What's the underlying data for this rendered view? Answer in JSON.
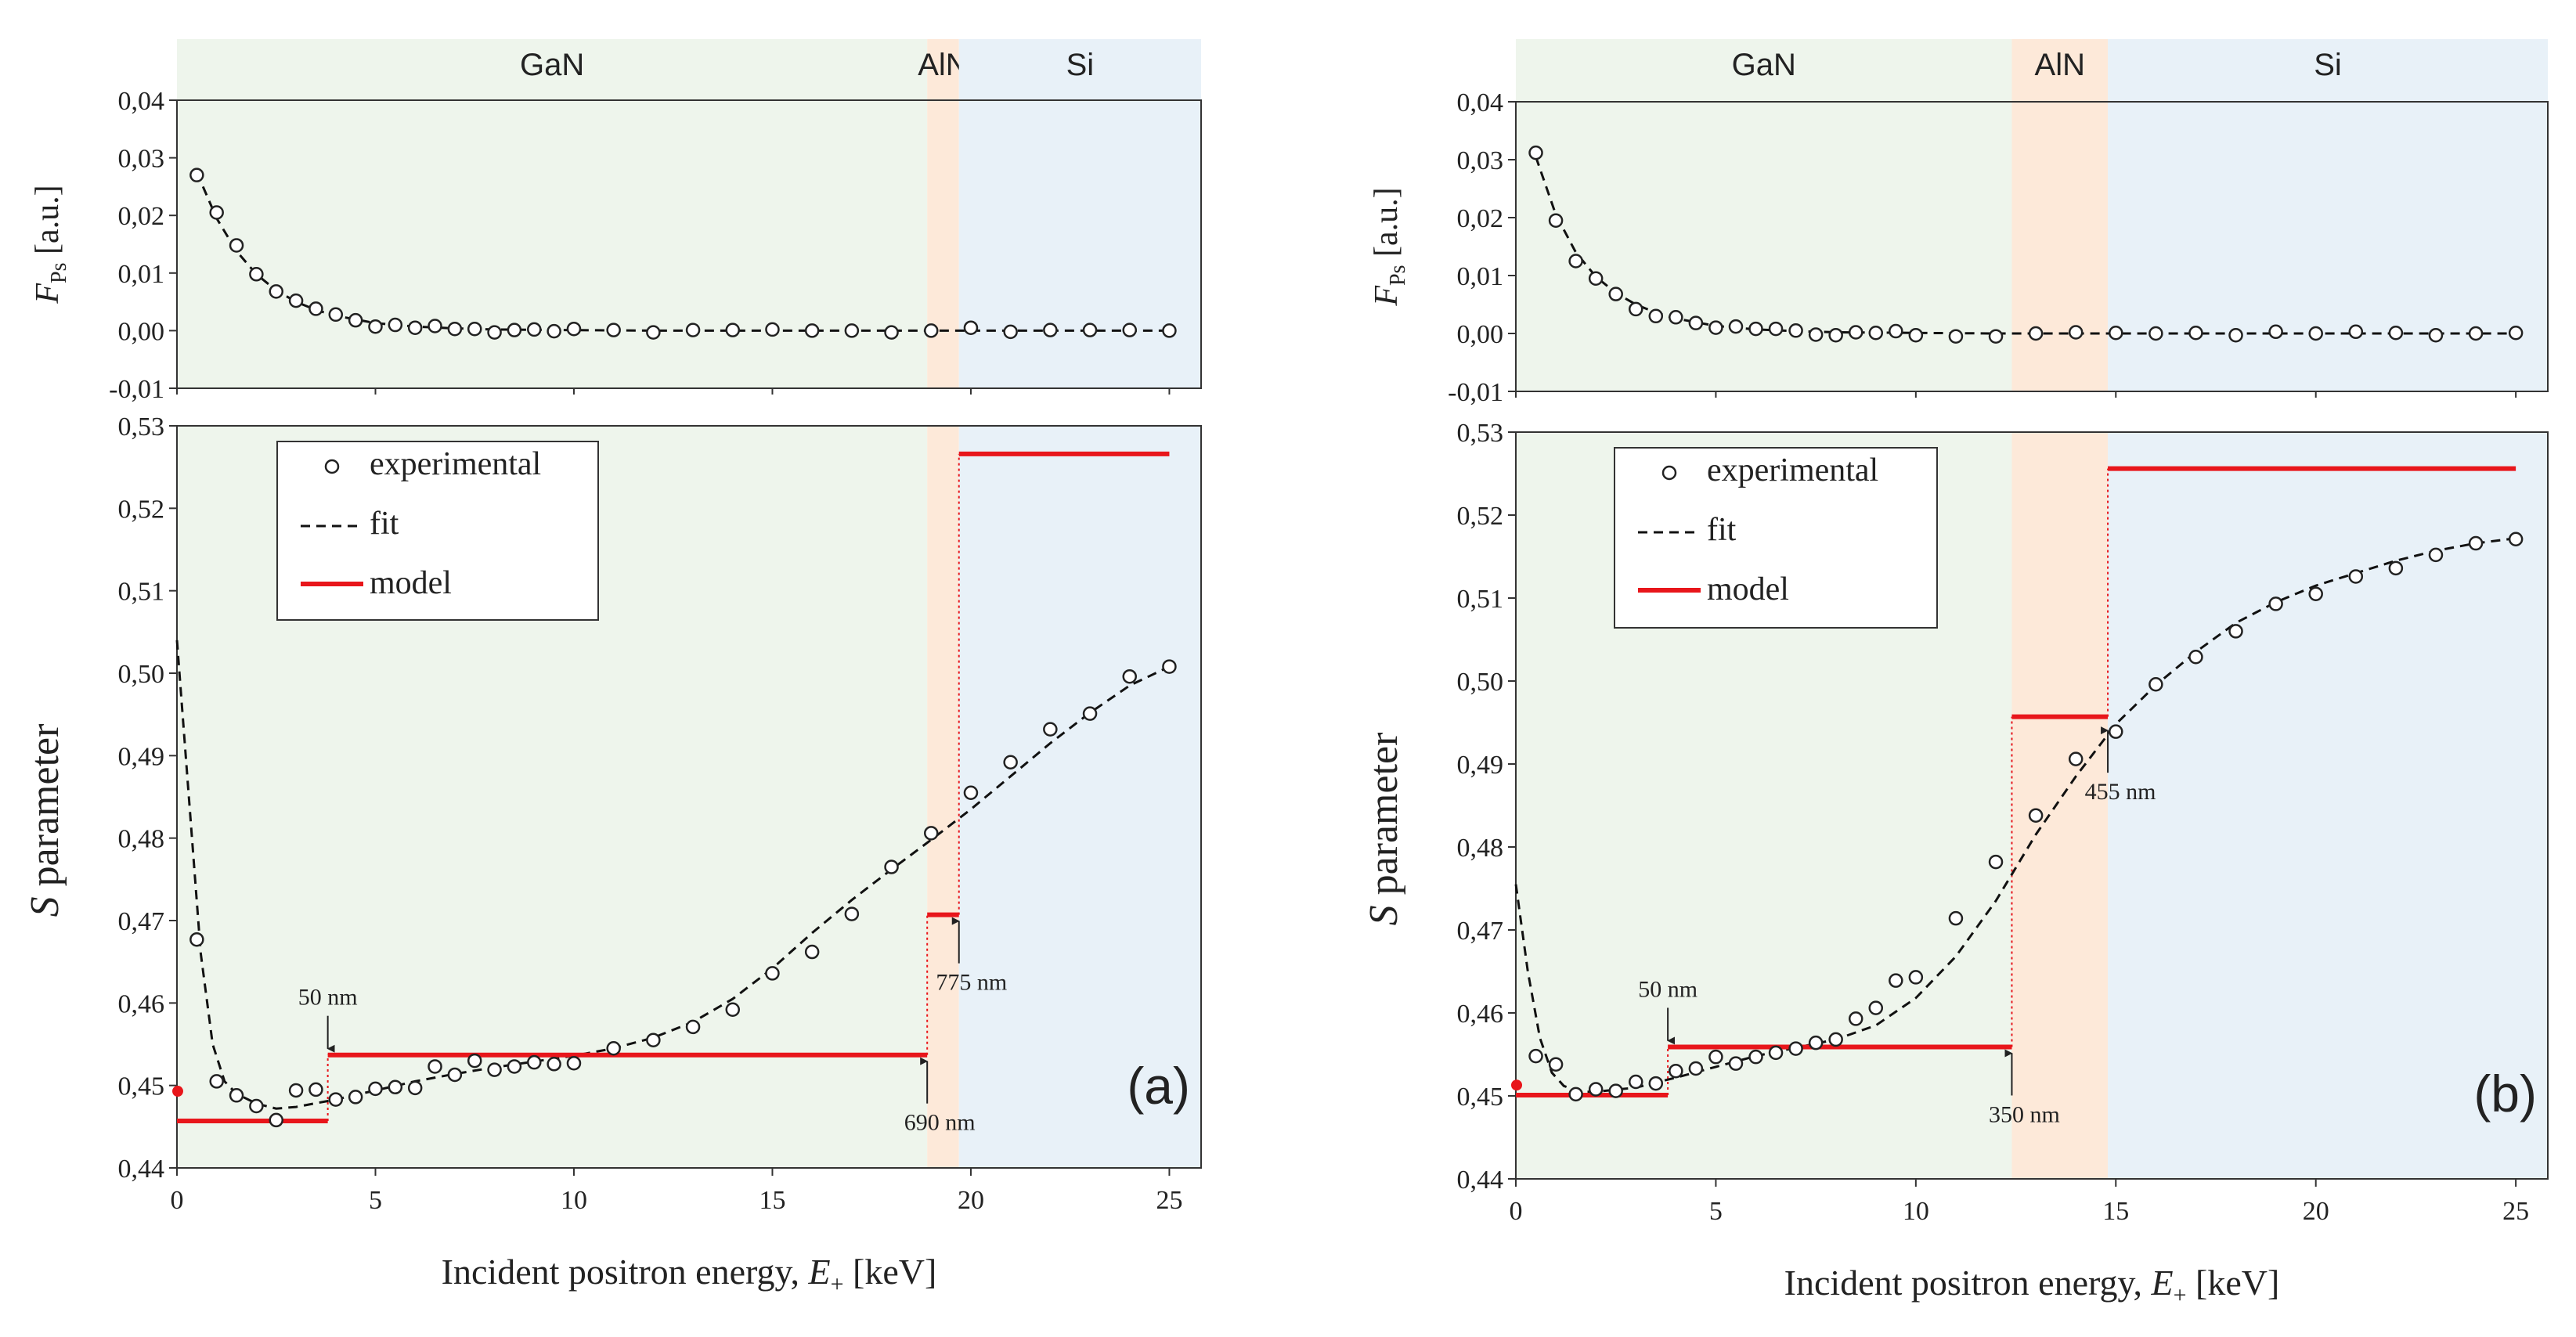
{
  "figure_title": "",
  "axis_common": {
    "xlabel_prefix": "Incident positron energy, ",
    "xlabel_var": "E",
    "xlabel_sub": "+",
    "xlabel_unit": " [keV]",
    "ylabel_top_var": "F",
    "ylabel_top_sub": "Ps",
    "ylabel_top_unit": " [a.u.]",
    "ylabel_bottom_var": "S",
    "ylabel_bottom_rest": " parameter"
  },
  "legend": {
    "experimental": "experimental",
    "fit": "fit",
    "model": "model"
  },
  "colors": {
    "gan_region": "#eef5ec",
    "aln_region": "#fde9d9",
    "si_region": "#e8f1f8",
    "model_line": "#e8161b",
    "data_marker": "#222222",
    "fit_line": "#111111"
  },
  "chart_data": [
    {
      "id": "a",
      "panel_label": "(a)",
      "type": "scatter",
      "xlabel": "Incident positron energy, E+ [keV]",
      "xlim": [
        0,
        25.8
      ],
      "x_ticks": [
        0,
        5,
        10,
        15,
        20,
        25
      ],
      "x_tick_labels": [
        "0",
        "5",
        "10",
        "15",
        "20",
        "25"
      ],
      "regions": [
        {
          "name": "GaN",
          "from": 0,
          "to": 18.9
        },
        {
          "name": "AlN",
          "from": 18.9,
          "to": 19.7
        },
        {
          "name": "Si",
          "from": 19.7,
          "to": 25.8
        }
      ],
      "top": {
        "ylabel": "F_Ps [a.u.]",
        "ylim": [
          -0.01,
          0.04
        ],
        "y_ticks": [
          -0.01,
          0,
          0.01,
          0.02,
          0.03,
          0.04
        ],
        "y_tick_labels": [
          "-0,01",
          "0,00",
          "0,01",
          "0,02",
          "0,03",
          "0,04"
        ],
        "experimental": {
          "x": [
            0.5,
            1,
            1.5,
            2,
            2.5,
            3,
            3.5,
            4,
            4.5,
            5,
            5.5,
            6,
            6.5,
            7,
            7.5,
            8,
            8.5,
            9,
            9.5,
            10,
            11,
            12,
            13,
            14,
            15,
            16,
            17,
            18,
            19,
            20,
            21,
            22,
            23,
            24,
            25
          ],
          "y": [
            0.027,
            0.0205,
            0.0148,
            0.0098,
            0.0068,
            0.0052,
            0.0038,
            0.0028,
            0.0018,
            0.0007,
            0.001,
            0.0005,
            0.0008,
            0.0003,
            0.0003,
            -0.0003,
            0.0001,
            0.0002,
            -0.0001,
            0.0003,
            0.0001,
            -0.0003,
            0.0001,
            0.0001,
            0.0002,
            0.0,
            0.0,
            -0.0003,
            0.0,
            0.0005,
            -0.0002,
            0.0001,
            0.0001,
            0.0001,
            0.0
          ]
        },
        "fit": {
          "x": [
            0.5,
            1,
            1.5,
            2,
            2.5,
            3,
            3.5,
            4,
            5,
            6,
            7,
            8,
            10,
            12,
            15,
            20,
            25
          ],
          "y": [
            0.0275,
            0.0195,
            0.0138,
            0.0098,
            0.007,
            0.005,
            0.0036,
            0.0026,
            0.0013,
            0.0007,
            0.0004,
            0.0002,
            0.0001,
            0.0,
            0.0,
            0.0,
            0.0
          ]
        }
      },
      "bottom": {
        "ylabel": "S parameter",
        "ylim": [
          0.44,
          0.53
        ],
        "y_ticks": [
          0.44,
          0.45,
          0.46,
          0.47,
          0.48,
          0.49,
          0.5,
          0.51,
          0.52,
          0.53
        ],
        "y_tick_labels": [
          "0,44",
          "0,45",
          "0,46",
          "0,47",
          "0,48",
          "0,49",
          "0,50",
          "0,51",
          "0,52",
          "0,53"
        ],
        "experimental": {
          "x": [
            0.5,
            1,
            1.5,
            2,
            2.5,
            3,
            3.5,
            4,
            4.5,
            5,
            5.5,
            6,
            6.5,
            7,
            7.5,
            8,
            8.5,
            9,
            9.5,
            10,
            11,
            12,
            13,
            14,
            15,
            16,
            17,
            18,
            19,
            20,
            21,
            22,
            23,
            24,
            25
          ],
          "y": [
            0.4677,
            0.4505,
            0.4488,
            0.4475,
            0.4458,
            0.4494,
            0.4495,
            0.4483,
            0.4486,
            0.4496,
            0.4498,
            0.4497,
            0.4523,
            0.4513,
            0.453,
            0.4519,
            0.4523,
            0.4528,
            0.4526,
            0.4527,
            0.4545,
            0.4555,
            0.4571,
            0.4592,
            0.4636,
            0.4662,
            0.4708,
            0.4765,
            0.4806,
            0.4855,
            0.4892,
            0.4932,
            0.4951,
            0.4996,
            0.5008
          ]
        },
        "fit": {
          "x": [
            0,
            0.3,
            0.6,
            0.9,
            1.2,
            1.5,
            2,
            2.5,
            3,
            4,
            5,
            6,
            7,
            8,
            9,
            10,
            11,
            12,
            13,
            14,
            15,
            16,
            17,
            18,
            19,
            20,
            21,
            22,
            23,
            24,
            25
          ],
          "y": [
            0.504,
            0.485,
            0.466,
            0.455,
            0.4505,
            0.449,
            0.4478,
            0.4472,
            0.4474,
            0.4483,
            0.4494,
            0.4505,
            0.4514,
            0.4522,
            0.4529,
            0.4536,
            0.4545,
            0.4558,
            0.4577,
            0.4605,
            0.4642,
            0.4685,
            0.4725,
            0.4762,
            0.4798,
            0.4835,
            0.4875,
            0.4915,
            0.4952,
            0.4985,
            0.5008
          ]
        },
        "model_segments": [
          {
            "x0": 0,
            "x1": 3.8,
            "y": 0.4457
          },
          {
            "x0": 3.8,
            "x1": 18.9,
            "y": 0.4537
          },
          {
            "x0": 18.9,
            "x1": 19.7,
            "y": 0.4707
          },
          {
            "x0": 19.7,
            "x1": 25,
            "y": 0.5266
          }
        ],
        "model_surface_point": {
          "x": 0,
          "y": 0.4493
        },
        "annotations": [
          {
            "label": "50 nm",
            "x": 3.8,
            "y": 0.4537,
            "side": "above"
          },
          {
            "label": "690 nm",
            "x": 18.9,
            "y": 0.4537,
            "side": "below"
          },
          {
            "label": "775 nm",
            "x": 19.7,
            "y": 0.4707,
            "side": "below"
          }
        ]
      }
    },
    {
      "id": "b",
      "panel_label": "(b)",
      "type": "scatter",
      "xlabel": "Incident positron energy, E+ [keV]",
      "xlim": [
        0,
        25.8
      ],
      "x_ticks": [
        0,
        5,
        10,
        15,
        20,
        25
      ],
      "x_tick_labels": [
        "0",
        "5",
        "10",
        "15",
        "20",
        "25"
      ],
      "regions": [
        {
          "name": "GaN",
          "from": 0,
          "to": 12.4
        },
        {
          "name": "AlN",
          "from": 12.4,
          "to": 14.8
        },
        {
          "name": "Si",
          "from": 14.8,
          "to": 25.8
        }
      ],
      "top": {
        "ylabel": "F_Ps [a.u.]",
        "ylim": [
          -0.01,
          0.04
        ],
        "y_ticks": [
          -0.01,
          0,
          0.01,
          0.02,
          0.03,
          0.04
        ],
        "y_tick_labels": [
          "-0,01",
          "0,00",
          "0,01",
          "0,02",
          "0,03",
          "0,04"
        ],
        "experimental": {
          "x": [
            0.5,
            1,
            1.5,
            2,
            2.5,
            3,
            3.5,
            4,
            4.5,
            5,
            5.5,
            6,
            6.5,
            7,
            7.5,
            8,
            8.5,
            9,
            9.5,
            10,
            11,
            12,
            13,
            14,
            15,
            16,
            17,
            18,
            19,
            20,
            21,
            22,
            23,
            24,
            25
          ],
          "y": [
            0.0312,
            0.0195,
            0.0125,
            0.0095,
            0.0068,
            0.0042,
            0.003,
            0.0028,
            0.0018,
            0.001,
            0.0012,
            0.0008,
            0.0008,
            0.0005,
            -0.0002,
            -0.0003,
            0.0002,
            0.0001,
            0.0004,
            -0.0003,
            -0.0005,
            -0.0005,
            0.0,
            0.0002,
            0.0001,
            0.0,
            0.0001,
            -0.0003,
            0.0003,
            0.0,
            0.0003,
            0.0001,
            -0.0003,
            0.0,
            0.0001
          ]
        },
        "fit": {
          "x": [
            0.5,
            1,
            1.5,
            2,
            2.5,
            3,
            3.5,
            4,
            5,
            6,
            7,
            8,
            10,
            12,
            15,
            20,
            25
          ],
          "y": [
            0.0305,
            0.0205,
            0.014,
            0.0098,
            0.007,
            0.005,
            0.0036,
            0.0026,
            0.0013,
            0.0007,
            0.0004,
            0.0002,
            0.0001,
            0.0,
            0.0,
            0.0,
            0.0
          ]
        }
      },
      "bottom": {
        "ylabel": "S parameter",
        "ylim": [
          0.44,
          0.53
        ],
        "y_ticks": [
          0.44,
          0.45,
          0.46,
          0.47,
          0.48,
          0.49,
          0.5,
          0.51,
          0.52,
          0.53
        ],
        "y_tick_labels": [
          "0,44",
          "0,45",
          "0,46",
          "0,47",
          "0,48",
          "0,49",
          "0,50",
          "0,51",
          "0,52",
          "0,53"
        ],
        "experimental": {
          "x": [
            0.5,
            1,
            1.5,
            2,
            2.5,
            3,
            3.5,
            4,
            4.5,
            5,
            5.5,
            6,
            6.5,
            7,
            7.5,
            8,
            8.5,
            9,
            9.5,
            10,
            11,
            12,
            13,
            14,
            15,
            16,
            17,
            18,
            19,
            20,
            21,
            22,
            23,
            24,
            25
          ],
          "y": [
            0.4548,
            0.4538,
            0.4502,
            0.4508,
            0.4506,
            0.4517,
            0.4515,
            0.453,
            0.4533,
            0.4547,
            0.4539,
            0.4547,
            0.4552,
            0.4557,
            0.4564,
            0.4568,
            0.4593,
            0.4606,
            0.4639,
            0.4643,
            0.4714,
            0.4782,
            0.4838,
            0.4906,
            0.4939,
            0.4996,
            0.5029,
            0.506,
            0.5093,
            0.5105,
            0.5126,
            0.5136,
            0.5152,
            0.5166,
            0.5171
          ]
        },
        "fit": {
          "x": [
            0,
            0.3,
            0.6,
            0.9,
            1.2,
            1.6,
            2,
            3,
            4,
            5,
            6,
            7,
            8,
            9,
            10,
            11,
            12,
            13,
            14,
            15,
            16,
            17,
            18,
            19,
            20,
            21,
            22,
            23,
            24,
            25
          ],
          "y": [
            0.4755,
            0.465,
            0.457,
            0.4528,
            0.4512,
            0.4505,
            0.4505,
            0.451,
            0.4522,
            0.4535,
            0.4548,
            0.4558,
            0.4568,
            0.4585,
            0.4618,
            0.4668,
            0.4735,
            0.4815,
            0.4885,
            0.4948,
            0.4995,
            0.5035,
            0.507,
            0.5095,
            0.5115,
            0.513,
            0.5145,
            0.5157,
            0.5166,
            0.5172
          ]
        },
        "model_segments": [
          {
            "x0": 0,
            "x1": 3.8,
            "y": 0.4501
          },
          {
            "x0": 3.8,
            "x1": 12.4,
            "y": 0.4559
          },
          {
            "x0": 12.4,
            "x1": 14.8,
            "y": 0.4957
          },
          {
            "x0": 14.8,
            "x1": 25,
            "y": 0.5256
          }
        ],
        "model_surface_point": {
          "x": 0,
          "y": 0.4513
        },
        "annotations": [
          {
            "label": "50 nm",
            "x": 3.8,
            "y": 0.4559,
            "side": "above"
          },
          {
            "label": "350 nm",
            "x": 12.4,
            "y": 0.4559,
            "side": "below"
          },
          {
            "label": "455 nm",
            "x": 14.8,
            "y": 0.4948,
            "side": "below"
          }
        ]
      }
    }
  ]
}
